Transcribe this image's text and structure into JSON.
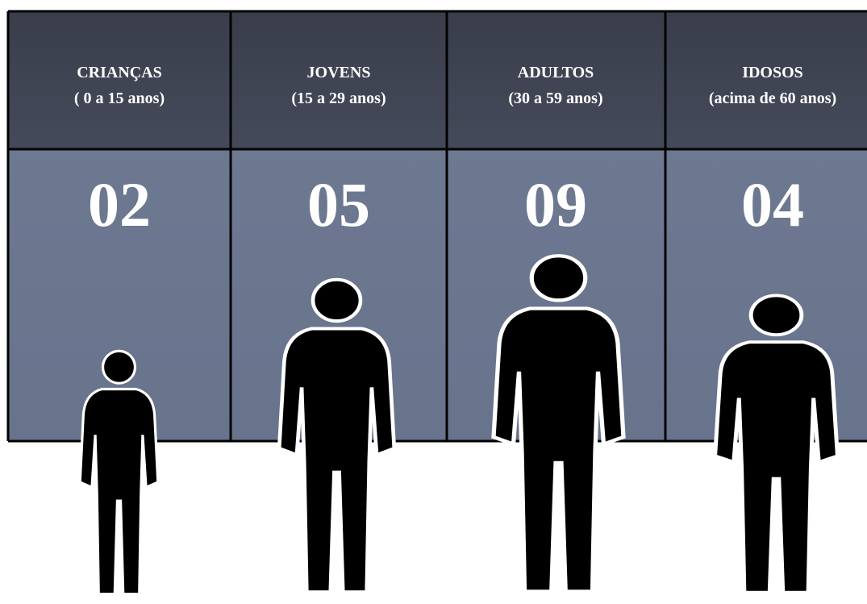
{
  "columns": [
    {
      "label": "CRIANÇAS",
      "range": "( 0 a 15 anos)",
      "count": "02"
    },
    {
      "label": "JOVENS",
      "range": "(15 a 29 anos)",
      "count": "05"
    },
    {
      "label": "ADULTOS",
      "range": "(30 a 59 anos)",
      "count": "09"
    },
    {
      "label": "IDOSOS",
      "range": "(acima de 60 anos)",
      "count": "04"
    }
  ]
}
